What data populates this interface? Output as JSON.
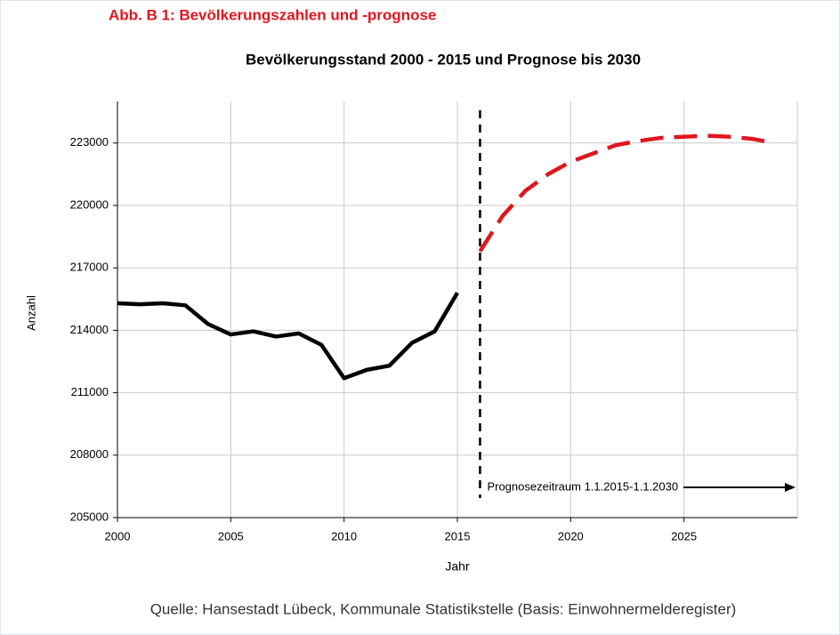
{
  "heading": "Abb. B 1: Bevölkerungszahlen und -prognose",
  "chart_data": {
    "type": "line",
    "title": "Bevölkerungsstand 2000 - 2015 und Prognose bis 2030",
    "x_label": "Jahr",
    "y_label": "Anzahl",
    "xlim": [
      2000,
      2030
    ],
    "xticks": [
      2000,
      2005,
      2010,
      2015,
      2020,
      2025
    ],
    "ylim": [
      205000,
      225000
    ],
    "yticks": [
      205000,
      208000,
      211000,
      214000,
      217000,
      220000,
      223000
    ],
    "grid": true,
    "series": [
      {
        "color": "#000000",
        "dashed": false,
        "x": [
          2000,
          2001,
          2002,
          2003,
          2004,
          2005,
          2006,
          2007,
          2008,
          2009,
          2010,
          2011,
          2012,
          2013,
          2014,
          2015
        ],
        "values": [
          215300,
          215250,
          215300,
          215200,
          214300,
          213800,
          213950,
          213700,
          213850,
          213300,
          211700,
          212100,
          212300,
          213400,
          213950,
          215800
        ]
      },
      {
        "color": "#e0161e",
        "dashed": true,
        "x": [
          2016,
          2017,
          2018,
          2019,
          2020,
          2021,
          2022,
          2023,
          2024,
          2025,
          2026,
          2027,
          2028,
          2029
        ],
        "values": [
          217800,
          219500,
          220700,
          221500,
          222100,
          222500,
          222900,
          223100,
          223250,
          223300,
          223350,
          223300,
          223200,
          223000
        ]
      }
    ],
    "forecast_start": 2016,
    "annotation": "Prognosezeitraum 1.1.2015-1.1.2030"
  },
  "source": "Quelle: Hansestadt Lübeck, Kommunale Statistikstelle (Basis: Einwohnermelderegister)"
}
